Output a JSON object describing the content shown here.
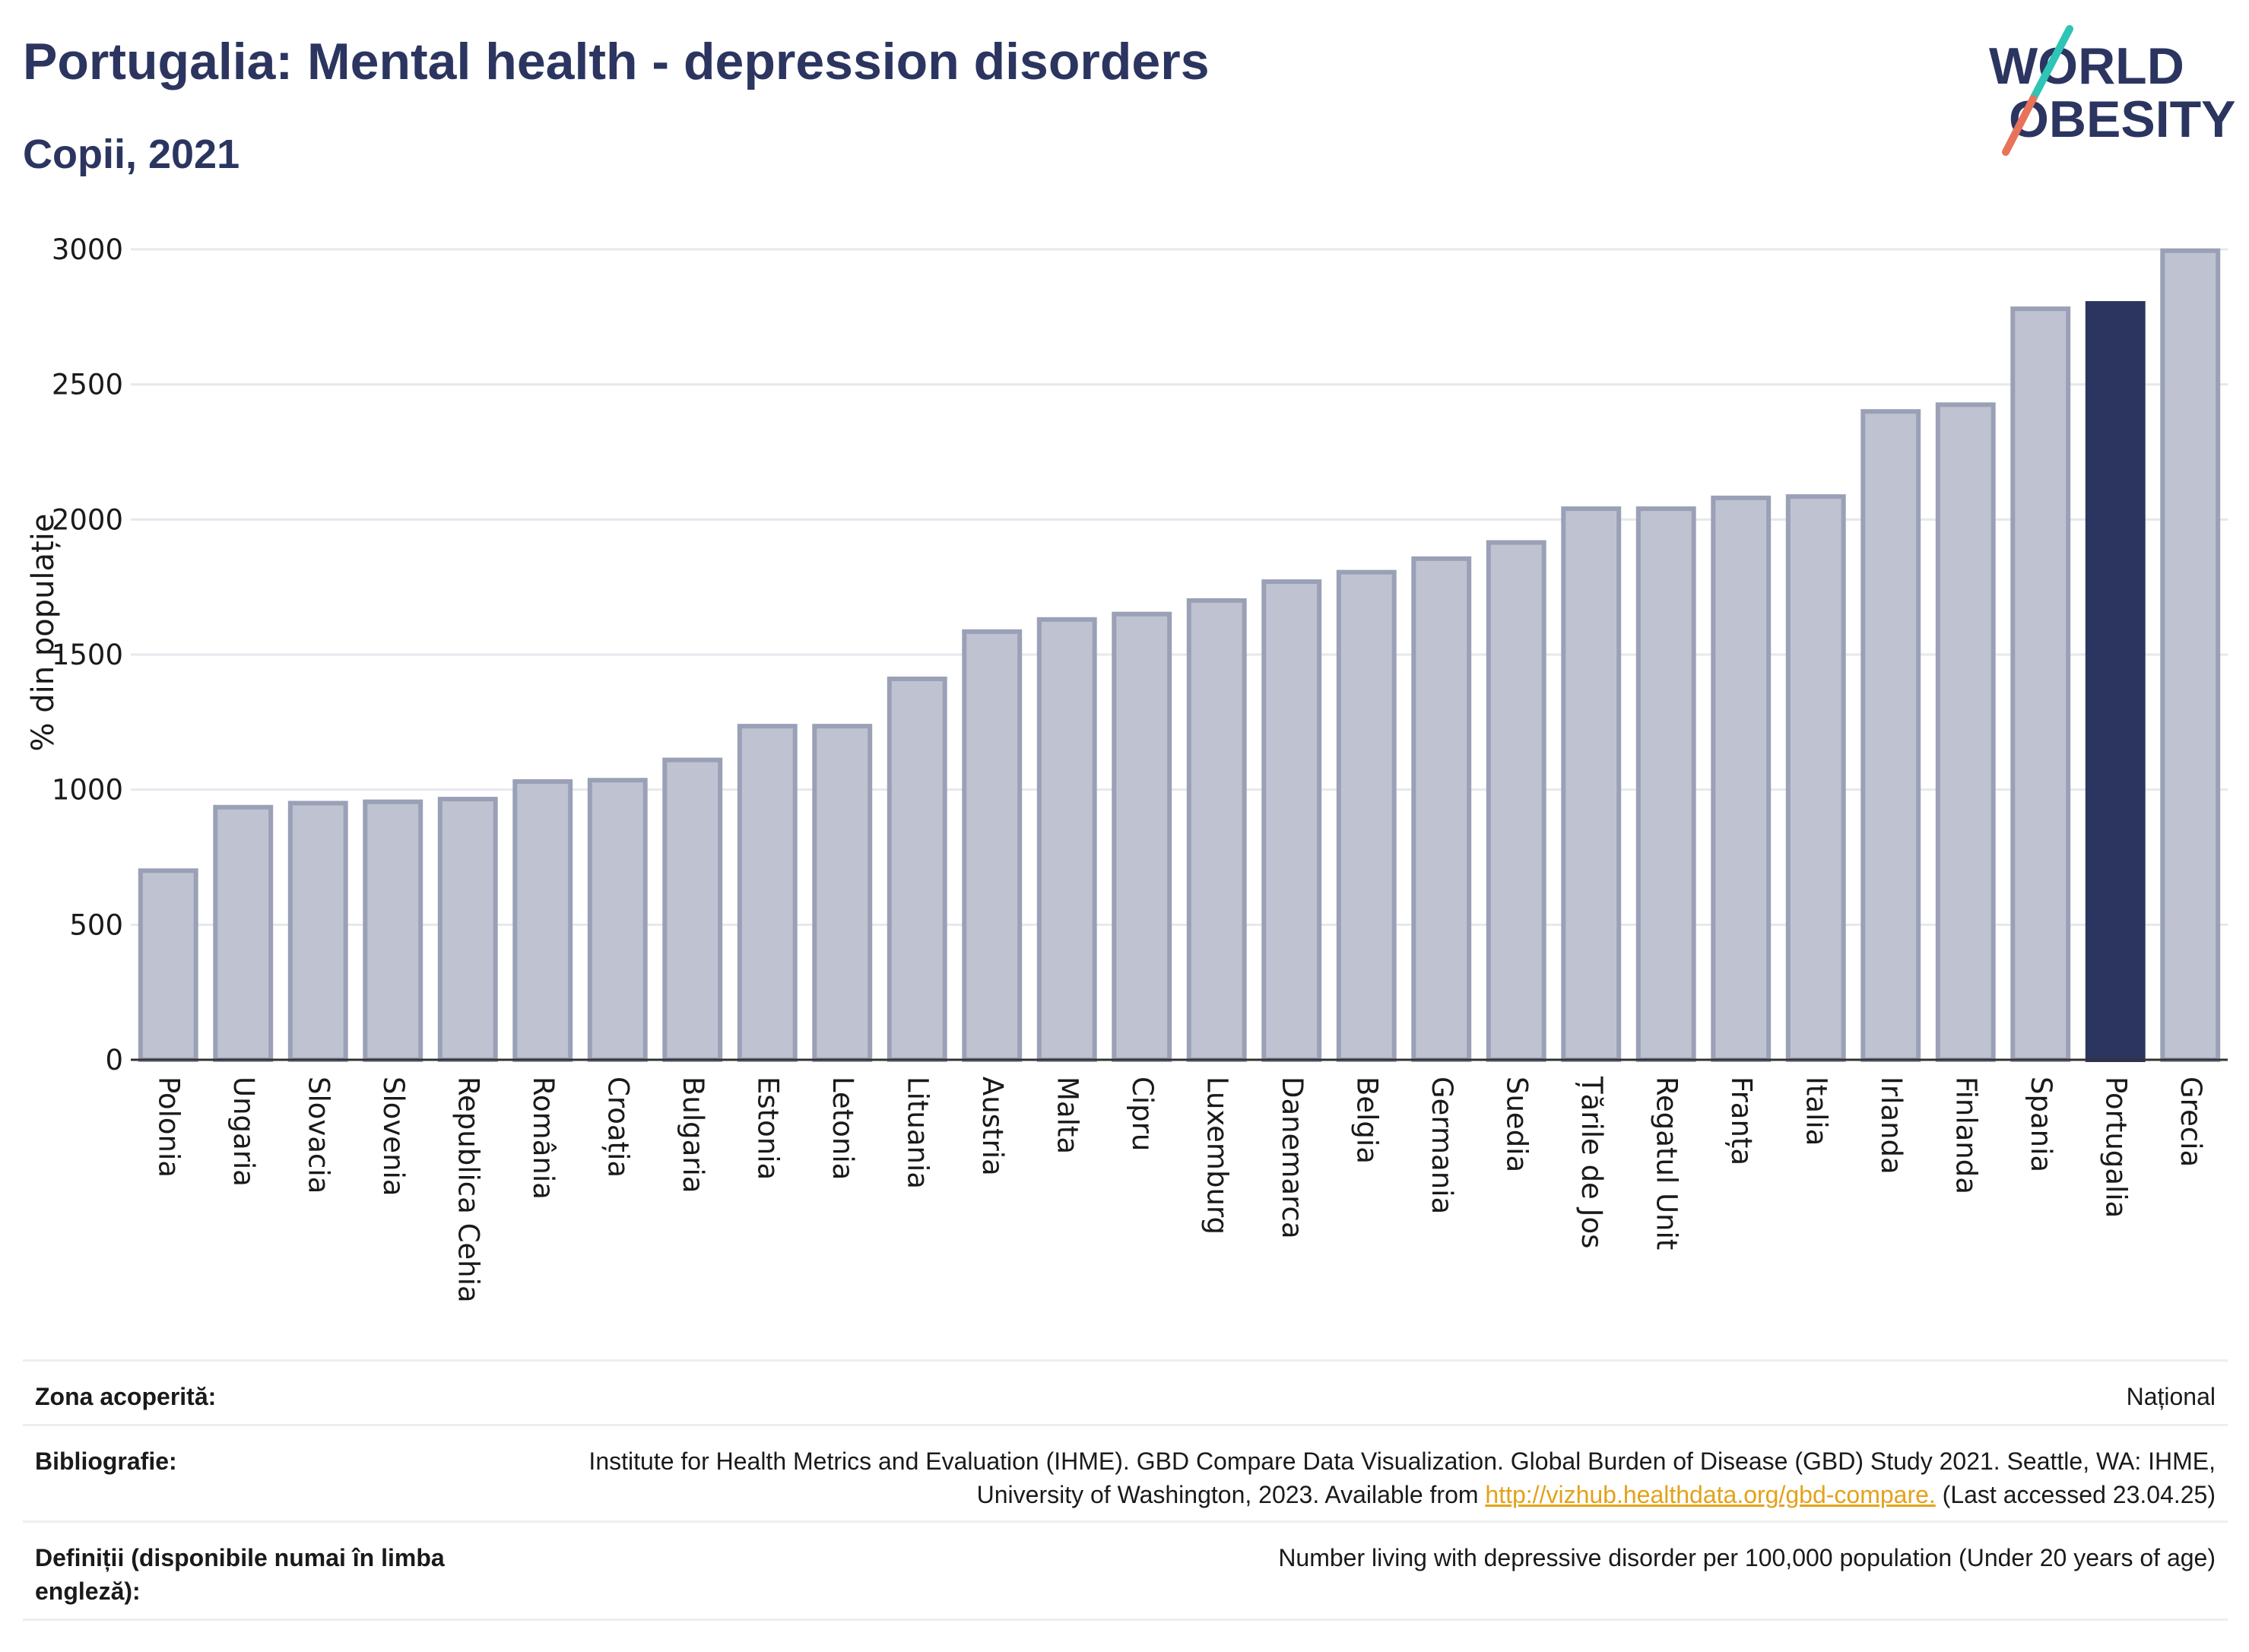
{
  "header": {
    "title": "Portugalia: Mental health - depression disorders",
    "subtitle": "Copii, 2021"
  },
  "logo": {
    "line1": "WORLD",
    "line2": "OBESITY",
    "colors": {
      "text": "#2b3560",
      "teal": "#2ec4b6",
      "coral": "#e8735a"
    }
  },
  "chart_data": {
    "type": "bar",
    "ylabel": "% din populație",
    "ylim": [
      0,
      3000
    ],
    "yticks": [
      0,
      500,
      1000,
      1500,
      2000,
      2500,
      3000
    ],
    "grid": true,
    "highlight": "Portugalia",
    "colors": {
      "bar": "#bfc2d0",
      "bar_border": "#9aa0b6",
      "highlight": "#2b3560"
    },
    "categories": [
      "Polonia",
      "Ungaria",
      "Slovacia",
      "Slovenia",
      "Republica Cehia",
      "România",
      "Croația",
      "Bulgaria",
      "Estonia",
      "Letonia",
      "Lituania",
      "Austria",
      "Malta",
      "Cipru",
      "Luxemburg",
      "Danemarca",
      "Belgia",
      "Germania",
      "Suedia",
      "Țările de Jos",
      "Regatul Unit",
      "Franța",
      "Italia",
      "Irlanda",
      "Finlanda",
      "Spania",
      "Portugalia",
      "Grecia"
    ],
    "values": [
      700,
      935,
      950,
      955,
      965,
      1030,
      1035,
      1110,
      1235,
      1235,
      1410,
      1585,
      1630,
      1650,
      1700,
      1770,
      1805,
      1855,
      1915,
      2040,
      2040,
      2080,
      2085,
      2400,
      2425,
      2780,
      2800,
      2995
    ]
  },
  "info": {
    "rows": [
      {
        "key": "Zona acoperită:",
        "value": "Național"
      },
      {
        "key": "Bibliografie:",
        "value_before": "Institute for Health Metrics and Evaluation (IHME). GBD Compare Data Visualization. Global Burden of Disease (GBD) Study 2021. Seattle, WA: IHME, University of Washington, 2023. Available from ",
        "link": "http://vizhub.healthdata.org/gbd-compare.",
        "value_after": " (Last accessed 23.04.25)"
      },
      {
        "key": "Definiții (disponibile numai în limba engleză):",
        "value": "Number living with depressive disorder per 100,000 population (Under 20 years of age)"
      }
    ]
  }
}
